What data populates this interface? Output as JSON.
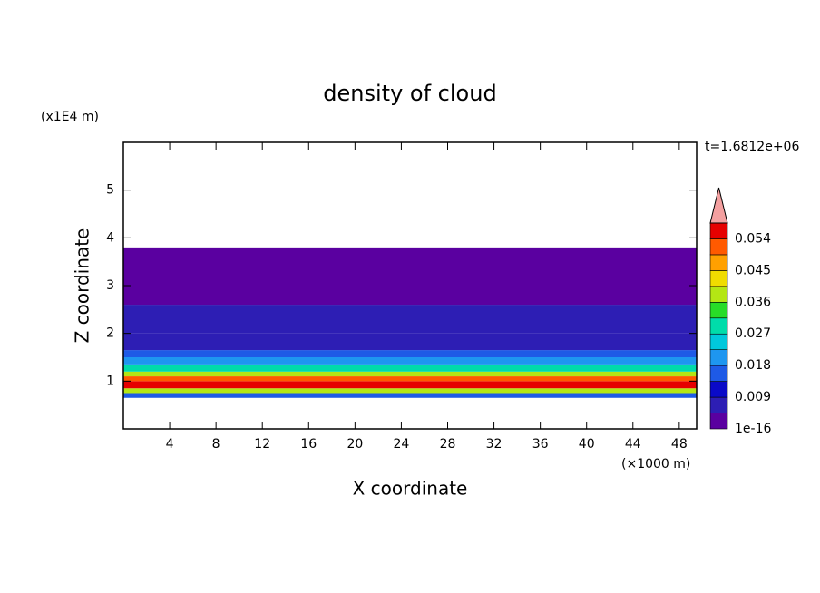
{
  "chart_data": {
    "type": "contour-profile",
    "title": "density of cloud",
    "x_label": "X coordinate",
    "x_unit": "(×1000 m)",
    "y_label": "Z coordinate",
    "y_unit": "(x1E4 m)",
    "time_label": "t=1.6812e+06",
    "xlim": [
      0,
      49.5
    ],
    "xticks": [
      4,
      8,
      12,
      16,
      20,
      24,
      28,
      32,
      36,
      40,
      44,
      48
    ],
    "ylim": [
      0,
      6
    ],
    "yticks": [
      1,
      2,
      3,
      4,
      5
    ],
    "z_edges": [
      0.65,
      0.75,
      0.85,
      1.0,
      1.1,
      1.2,
      1.35,
      1.5,
      1.65,
      2.0,
      2.6,
      3.8
    ],
    "values": [
      0.015,
      0.04,
      0.055,
      0.05,
      0.038,
      0.03,
      0.022,
      0.015,
      0.008,
      0.005,
      0.002
    ],
    "levels": [
      1e-16,
      0.0045,
      0.009,
      0.0135,
      0.018,
      0.0225,
      0.027,
      0.0315,
      0.036,
      0.0405,
      0.045,
      0.0495,
      0.054,
      0.0585
    ],
    "colors": [
      "#5a00a0",
      "#2d1eb4",
      "#0a0ac8",
      "#1e5ae6",
      "#1e96f0",
      "#00c8dc",
      "#00dcaa",
      "#28dc28",
      "#b4e614",
      "#f0dc00",
      "#ffa000",
      "#ff5a00",
      "#e60000"
    ],
    "overflow_color": "#f4a0a0"
  }
}
